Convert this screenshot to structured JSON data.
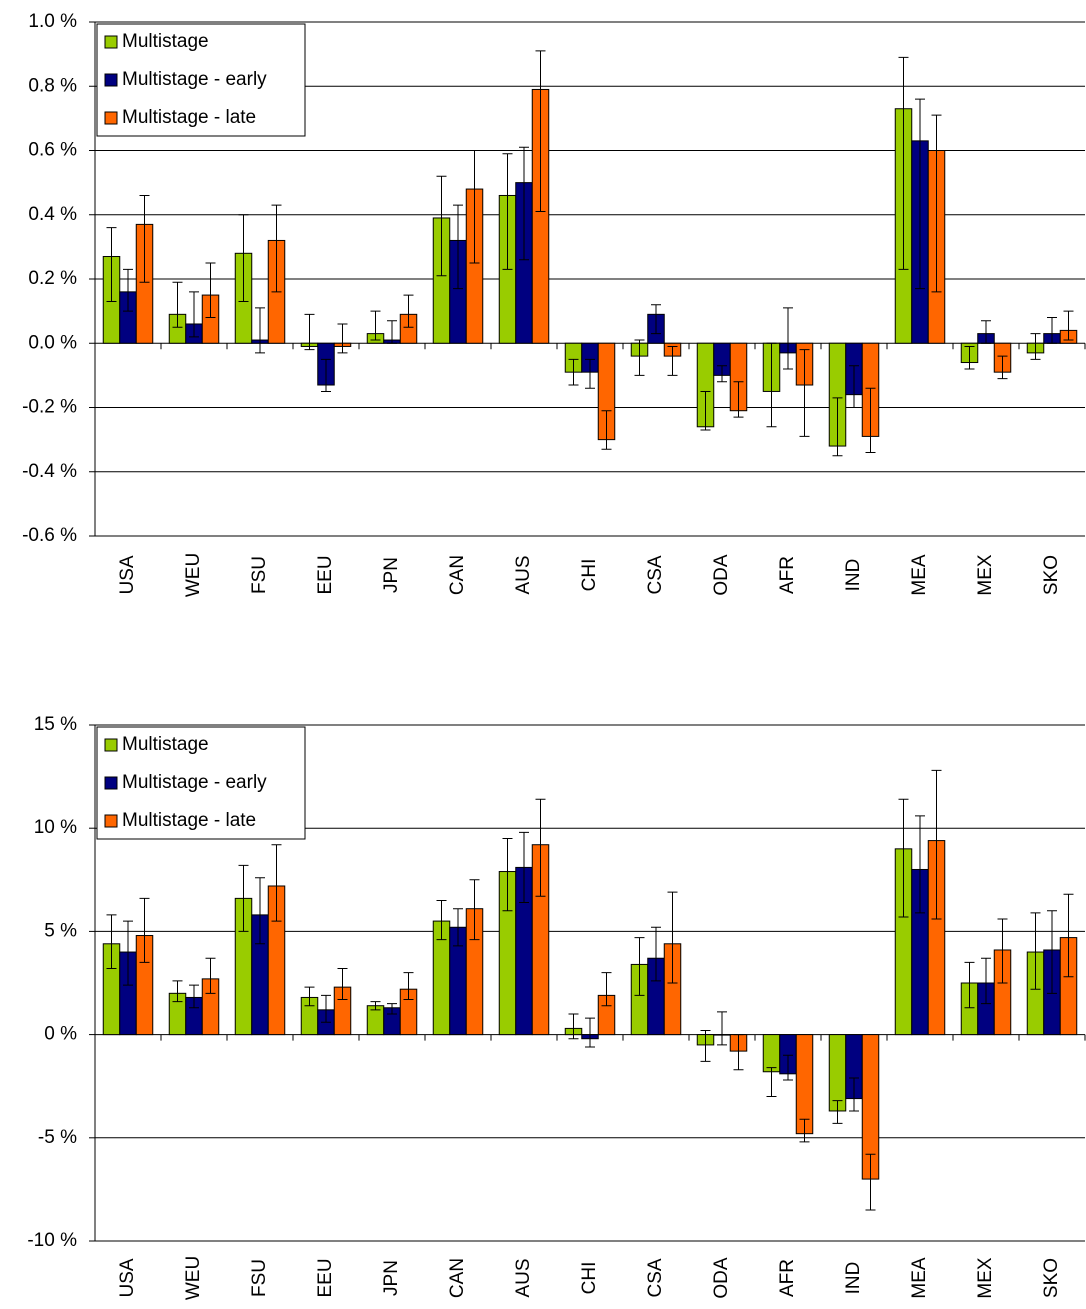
{
  "chart_data": [
    {
      "type": "bar",
      "legend": "top-left",
      "grid": true,
      "categories": [
        "USA",
        "WEU",
        "FSU",
        "EEU",
        "JPN",
        "CAN",
        "AUS",
        "CHI",
        "CSA",
        "ODA",
        "AFR",
        "IND",
        "MEA",
        "MEX",
        "SKO"
      ],
      "ylim": [
        -0.6,
        1.0
      ],
      "yticks": [
        {
          "value": -0.6,
          "label": "-0.6 %"
        },
        {
          "value": -0.4,
          "label": "-0.4 %"
        },
        {
          "value": -0.2,
          "label": "-0.2 %"
        },
        {
          "value": 0,
          "label": "0.0 %"
        },
        {
          "value": 0.2,
          "label": "0.2 %"
        },
        {
          "value": 0.4,
          "label": "0.4 %"
        },
        {
          "value": 0.6,
          "label": "0.6 %"
        },
        {
          "value": 0.8,
          "label": "0.8 %"
        },
        {
          "value": 1.0,
          "label": "1.0 %"
        }
      ],
      "series": [
        {
          "name": "Multistage",
          "color": "#99cc00",
          "values": [
            0.27,
            0.09,
            0.28,
            -0.01,
            0.03,
            0.39,
            0.46,
            -0.09,
            -0.04,
            -0.26,
            -0.15,
            -0.32,
            0.73,
            -0.06,
            -0.03
          ],
          "lows": [
            0.13,
            0.05,
            0.13,
            -0.02,
            0.01,
            0.21,
            0.23,
            -0.13,
            -0.1,
            -0.27,
            -0.26,
            -0.35,
            0.23,
            -0.08,
            -0.05
          ],
          "highs": [
            0.36,
            0.19,
            0.4,
            0.09,
            0.1,
            0.52,
            0.59,
            -0.05,
            0.01,
            -0.15,
            0.0,
            -0.17,
            0.89,
            -0.01,
            0.03
          ]
        },
        {
          "name": "Multistage - early",
          "color": "#000080",
          "values": [
            0.16,
            0.06,
            0.01,
            -0.13,
            0.01,
            0.32,
            0.5,
            -0.09,
            0.09,
            -0.1,
            -0.03,
            -0.16,
            0.63,
            0.03,
            0.03
          ],
          "lows": [
            0.1,
            0.02,
            -0.03,
            -0.15,
            0.0,
            0.17,
            0.26,
            -0.14,
            0.03,
            -0.12,
            -0.08,
            -0.2,
            0.17,
            0.0,
            0.0
          ],
          "highs": [
            0.23,
            0.16,
            0.11,
            -0.05,
            0.07,
            0.43,
            0.61,
            -0.05,
            0.12,
            -0.07,
            0.11,
            -0.07,
            0.76,
            0.07,
            0.08
          ]
        },
        {
          "name": "Multistage - late",
          "color": "#ff6600",
          "values": [
            0.37,
            0.15,
            0.32,
            -0.01,
            0.09,
            0.48,
            0.79,
            -0.3,
            -0.04,
            -0.21,
            -0.13,
            -0.29,
            0.6,
            -0.09,
            0.04
          ],
          "lows": [
            0.19,
            0.08,
            0.16,
            -0.03,
            0.05,
            0.25,
            0.41,
            -0.33,
            -0.1,
            -0.23,
            -0.29,
            -0.34,
            0.16,
            -0.11,
            0.01
          ],
          "highs": [
            0.46,
            0.25,
            0.43,
            0.06,
            0.15,
            0.6,
            0.91,
            -0.21,
            -0.01,
            -0.12,
            -0.02,
            -0.14,
            0.71,
            -0.04,
            0.1
          ]
        }
      ]
    },
    {
      "type": "bar",
      "legend": "top-left",
      "grid": true,
      "categories": [
        "USA",
        "WEU",
        "FSU",
        "EEU",
        "JPN",
        "CAN",
        "AUS",
        "CHI",
        "CSA",
        "ODA",
        "AFR",
        "IND",
        "MEA",
        "MEX",
        "SKO"
      ],
      "ylim": [
        -10,
        15
      ],
      "yticks": [
        {
          "value": -10,
          "label": "-10 %"
        },
        {
          "value": -5,
          "label": "-5 %"
        },
        {
          "value": 0,
          "label": "0 %"
        },
        {
          "value": 5,
          "label": "5 %"
        },
        {
          "value": 10,
          "label": "10 %"
        },
        {
          "value": 15,
          "label": "15 %"
        }
      ],
      "series": [
        {
          "name": "Multistage",
          "color": "#99cc00",
          "values": [
            4.4,
            2.0,
            6.6,
            1.8,
            1.4,
            5.5,
            7.9,
            0.3,
            3.4,
            -0.5,
            -1.8,
            -3.7,
            9.0,
            2.5,
            4.0
          ],
          "lows": [
            3.2,
            1.6,
            5.0,
            1.4,
            1.2,
            4.6,
            6.0,
            -0.2,
            1.9,
            -1.3,
            -3.0,
            -4.3,
            5.7,
            1.3,
            2.2
          ],
          "highs": [
            5.8,
            2.6,
            8.2,
            2.3,
            1.6,
            6.5,
            9.5,
            1.0,
            4.7,
            0.2,
            -1.6,
            -3.2,
            11.4,
            3.5,
            5.9
          ]
        },
        {
          "name": "Multistage - early",
          "color": "#000080",
          "values": [
            4.0,
            1.8,
            5.8,
            1.2,
            1.3,
            5.2,
            8.1,
            -0.2,
            3.7,
            0.0,
            -1.9,
            -3.1,
            8.0,
            2.5,
            4.1
          ],
          "lows": [
            2.4,
            1.3,
            4.4,
            0.6,
            1.0,
            4.3,
            6.4,
            -0.6,
            2.6,
            -0.5,
            -2.2,
            -3.7,
            5.9,
            1.5,
            2.0
          ],
          "highs": [
            5.5,
            2.4,
            7.6,
            1.9,
            1.5,
            6.1,
            9.8,
            0.8,
            5.2,
            1.1,
            -1.0,
            -2.1,
            10.6,
            3.7,
            6.0
          ]
        },
        {
          "name": "Multistage - late",
          "color": "#ff6600",
          "values": [
            4.8,
            2.7,
            7.2,
            2.3,
            2.2,
            6.1,
            9.2,
            1.9,
            4.4,
            -0.8,
            -4.8,
            -7.0,
            9.4,
            4.1,
            4.7
          ],
          "lows": [
            3.5,
            2.0,
            5.5,
            1.7,
            1.7,
            4.6,
            6.7,
            1.4,
            2.5,
            -1.7,
            -5.2,
            -8.5,
            5.6,
            2.5,
            2.8
          ],
          "highs": [
            6.6,
            3.7,
            9.2,
            3.2,
            3.0,
            7.5,
            11.4,
            3.0,
            6.9,
            0.0,
            -4.1,
            -5.8,
            12.8,
            5.6,
            6.8
          ]
        }
      ]
    }
  ]
}
